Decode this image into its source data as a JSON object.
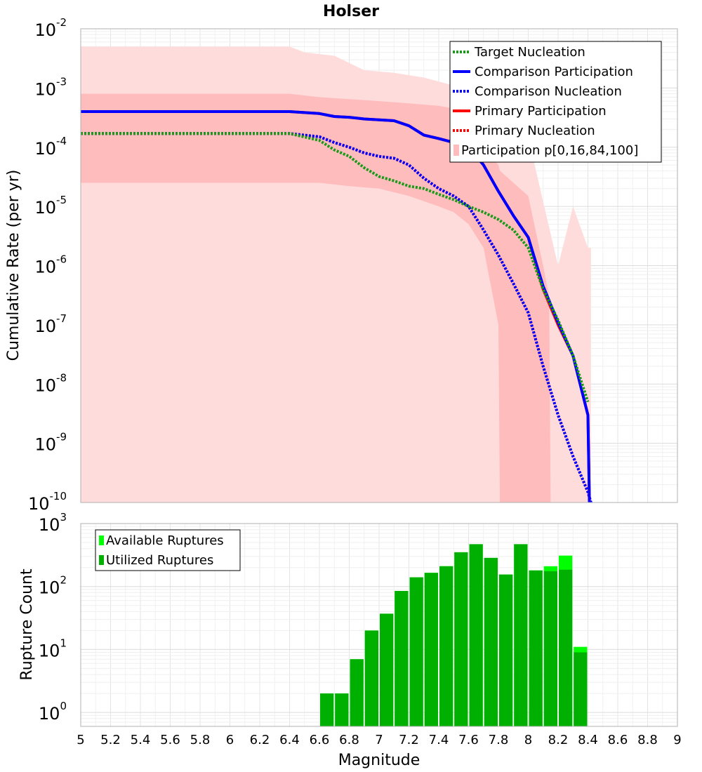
{
  "title": "Holser",
  "xlabel": "Magnitude",
  "colors": {
    "target": "#1a9a1a",
    "comparison": "#0000ff",
    "primary": "#ff0000",
    "band_outer": "#ffdcdc",
    "band_inner": "#ffbcbc",
    "available": "#00ff00",
    "utilized": "#00b000"
  },
  "chart_data": [
    {
      "type": "line",
      "title": "Holser",
      "xlabel": "",
      "ylabel": "Cumulative Rate (per yr)",
      "xlim": [
        5,
        9
      ],
      "ylim": [
        1e-10,
        0.01
      ],
      "yscale": "log",
      "grid": true,
      "legend_position": "top-right",
      "legend": [
        "Target Nucleation",
        "Comparison Participation",
        "Comparison Nucleation",
        "Primary Participation",
        "Primary Nucleation",
        "Participation p[0,16,84,100]"
      ],
      "ytick_exponents": [
        "-10",
        "-9",
        "-8",
        "-7",
        "-6",
        "-5",
        "-4",
        "-3",
        "-2"
      ],
      "series": [
        {
          "name": "Primary Participation",
          "style": "solid",
          "color_key": "primary",
          "x": [
            5.0,
            6.4,
            6.6,
            6.7,
            6.8,
            6.9,
            7.0,
            7.1,
            7.2,
            7.3,
            7.4,
            7.5,
            7.6,
            7.7,
            7.8,
            7.9,
            8.0,
            8.1,
            8.2,
            8.3,
            8.4,
            8.41
          ],
          "y": [
            0.0004,
            0.0004,
            0.00037,
            0.00033,
            0.00032,
            0.0003,
            0.00029,
            0.00028,
            0.00023,
            0.00016,
            0.00014,
            0.00012,
            0.0001,
            5e-05,
            1.8e-05,
            7e-06,
            3e-06,
            4e-07,
            1e-07,
            3e-08,
            3e-09,
            1e-10
          ]
        },
        {
          "name": "Comparison Participation",
          "style": "solid",
          "color_key": "comparison",
          "x": [
            5.0,
            6.4,
            6.6,
            6.7,
            6.8,
            6.9,
            7.0,
            7.1,
            7.2,
            7.3,
            7.4,
            7.5,
            7.6,
            7.7,
            7.8,
            7.9,
            8.0,
            8.1,
            8.2,
            8.3,
            8.4,
            8.41
          ],
          "y": [
            0.0004,
            0.0004,
            0.00037,
            0.00033,
            0.00032,
            0.0003,
            0.00029,
            0.00028,
            0.00023,
            0.00016,
            0.00014,
            0.00012,
            0.0001,
            5e-05,
            1.8e-05,
            7e-06,
            3e-06,
            4.5e-07,
            1.1e-07,
            3e-08,
            3e-09,
            1e-10
          ]
        },
        {
          "name": "Primary Nucleation",
          "style": "dotted",
          "color_key": "primary",
          "x": [
            5.0,
            6.4,
            6.6,
            6.7,
            6.8,
            6.9,
            7.0,
            7.1,
            7.2,
            7.3,
            7.4,
            7.5,
            7.6,
            7.7,
            7.8,
            7.9,
            8.0,
            8.1,
            8.2,
            8.3,
            8.4,
            8.42
          ],
          "y": [
            0.00017,
            0.00017,
            0.00015,
            0.00012,
            0.0001,
            8e-05,
            7e-05,
            6.5e-05,
            5e-05,
            3e-05,
            2e-05,
            1.5e-05,
            1e-05,
            4e-06,
            1.5e-06,
            5e-07,
            1.6e-07,
            2e-08,
            3e-09,
            6e-10,
            1.5e-10,
            1e-10
          ]
        },
        {
          "name": "Comparison Nucleation",
          "style": "dotted",
          "color_key": "comparison",
          "x": [
            5.0,
            6.4,
            6.6,
            6.7,
            6.8,
            6.9,
            7.0,
            7.1,
            7.2,
            7.3,
            7.4,
            7.5,
            7.6,
            7.7,
            7.8,
            7.9,
            8.0,
            8.1,
            8.2,
            8.3,
            8.4,
            8.42
          ],
          "y": [
            0.00017,
            0.00017,
            0.00015,
            0.00012,
            0.0001,
            8e-05,
            7e-05,
            6.5e-05,
            5e-05,
            3e-05,
            2e-05,
            1.5e-05,
            1e-05,
            4e-06,
            1.5e-06,
            5e-07,
            1.6e-07,
            2e-08,
            3e-09,
            6e-10,
            1.5e-10,
            1e-10
          ]
        },
        {
          "name": "Target Nucleation",
          "style": "dotted",
          "color_key": "target",
          "x": [
            5.0,
            6.4,
            6.6,
            6.7,
            6.8,
            6.9,
            7.0,
            7.1,
            7.2,
            7.3,
            7.4,
            7.5,
            7.6,
            7.7,
            7.8,
            7.9,
            8.0,
            8.1,
            8.2,
            8.3,
            8.4
          ],
          "y": [
            0.00017,
            0.00017,
            0.00013,
            9e-05,
            7e-05,
            4.5e-05,
            3.2e-05,
            2.7e-05,
            2.2e-05,
            2e-05,
            1.6e-05,
            1.3e-05,
            1e-05,
            8e-06,
            6e-06,
            4e-06,
            2e-06,
            4e-07,
            1.2e-07,
            3e-08,
            5e-09
          ]
        }
      ],
      "bands": [
        {
          "name": "Participation p[0,16,84,100] outer",
          "color_key": "band_outer",
          "x": [
            5.0,
            6.4,
            6.5,
            6.7,
            6.9,
            7.1,
            7.3,
            7.5,
            7.6,
            7.7,
            7.8,
            7.9,
            8.0,
            8.1,
            8.2,
            8.3,
            8.4,
            8.42
          ],
          "upper": [
            0.005,
            0.005,
            0.004,
            0.0035,
            0.002,
            0.0018,
            0.0015,
            0.0011,
            0.001,
            0.001,
            0.0004,
            0.0002,
            0.00015,
            1.2e-05,
            1e-06,
            1e-05,
            2e-06,
            2e-06
          ],
          "lower": [
            1e-10,
            1e-10,
            1e-10,
            1e-10,
            1e-10,
            1e-10,
            1e-10,
            1e-10,
            1e-10,
            1e-10,
            1e-10,
            1e-10,
            1e-10,
            1e-10,
            1e-10,
            1e-10,
            1e-10,
            1e-10
          ]
        },
        {
          "name": "Participation p[0,16,84,100] inner",
          "color_key": "band_inner",
          "x": [
            5.0,
            6.4,
            6.6,
            6.8,
            7.0,
            7.2,
            7.4,
            7.5,
            7.6,
            7.7,
            7.8,
            7.81,
            8.0,
            8.1,
            8.14,
            8.15
          ],
          "upper": [
            0.0008,
            0.0008,
            0.0007,
            0.00065,
            0.0006,
            0.00055,
            0.0005,
            0.00045,
            0.00025,
            0.0001,
            5e-05,
            4e-05,
            1.5e-05,
            1e-06,
            3e-07,
            1e-10
          ],
          "lower": [
            2.5e-05,
            2.5e-05,
            2.5e-05,
            2.2e-05,
            2e-05,
            1.5e-05,
            1e-05,
            8e-06,
            5e-06,
            2e-06,
            1e-07,
            1e-10,
            1e-10,
            1e-10,
            1e-10,
            1e-10
          ]
        }
      ]
    },
    {
      "type": "bar",
      "title": "",
      "xlabel": "Magnitude",
      "ylabel": "Rupture Count",
      "xlim": [
        5,
        9
      ],
      "ylim": [
        0.6,
        1000
      ],
      "yscale": "log",
      "grid": true,
      "legend_position": "top-left",
      "legend": [
        "Available Ruptures",
        "Utilized Ruptures"
      ],
      "ytick_exponents": [
        "0",
        "1",
        "2",
        "3"
      ],
      "xticks": [
        "5",
        "5.2",
        "5.4",
        "5.6",
        "5.8",
        "6",
        "6.2",
        "6.4",
        "6.6",
        "6.8",
        "7",
        "7.2",
        "7.4",
        "7.6",
        "7.8",
        "8",
        "8.2",
        "8.4",
        "8.6",
        "8.8",
        "9"
      ],
      "bin_width": 0.1,
      "bin_centers": [
        6.65,
        6.75,
        6.85,
        6.95,
        7.05,
        7.15,
        7.25,
        7.35,
        7.45,
        7.55,
        7.65,
        7.75,
        7.85,
        7.95,
        8.05,
        8.15,
        8.25,
        8.35
      ],
      "series": [
        {
          "name": "Available Ruptures",
          "color_key": "available",
          "values": [
            2,
            2,
            7,
            20,
            37,
            85,
            140,
            165,
            210,
            350,
            470,
            285,
            155,
            470,
            180,
            210,
            310,
            11
          ]
        },
        {
          "name": "Utilized Ruptures",
          "color_key": "utilized",
          "values": [
            2,
            2,
            7,
            20,
            37,
            85,
            140,
            165,
            210,
            350,
            470,
            285,
            155,
            470,
            180,
            175,
            185,
            9
          ]
        }
      ]
    }
  ]
}
